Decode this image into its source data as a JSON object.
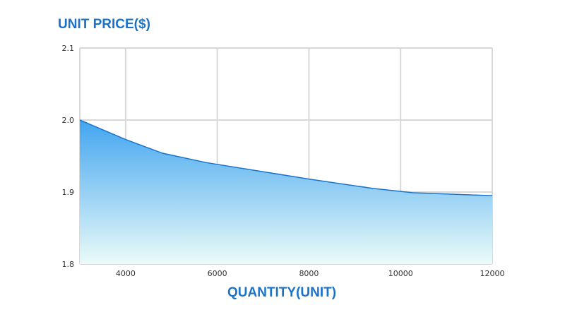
{
  "chart_data": {
    "type": "area",
    "title": "",
    "xlabel": "QUANTITY(UNIT)",
    "ylabel": "UNIT PRICE($)",
    "xlim": [
      3000,
      12000
    ],
    "ylim": [
      1.8,
      2.1
    ],
    "xticks": [
      "4000",
      "6000",
      "8000",
      "10000",
      "12000"
    ],
    "yticks": [
      "1.8",
      "1.9",
      "2.0",
      "2.1"
    ],
    "grid": true,
    "line_color": "#1a73c9",
    "fill_top": "#42a5f0",
    "fill_bottom": "#eafbf8",
    "x": [
      3000,
      4000,
      4800,
      5750,
      8000,
      9400,
      10270,
      12000
    ],
    "y": [
      2.0,
      1.973,
      1.954,
      1.941,
      1.918,
      1.905,
      1.899,
      1.895
    ]
  }
}
